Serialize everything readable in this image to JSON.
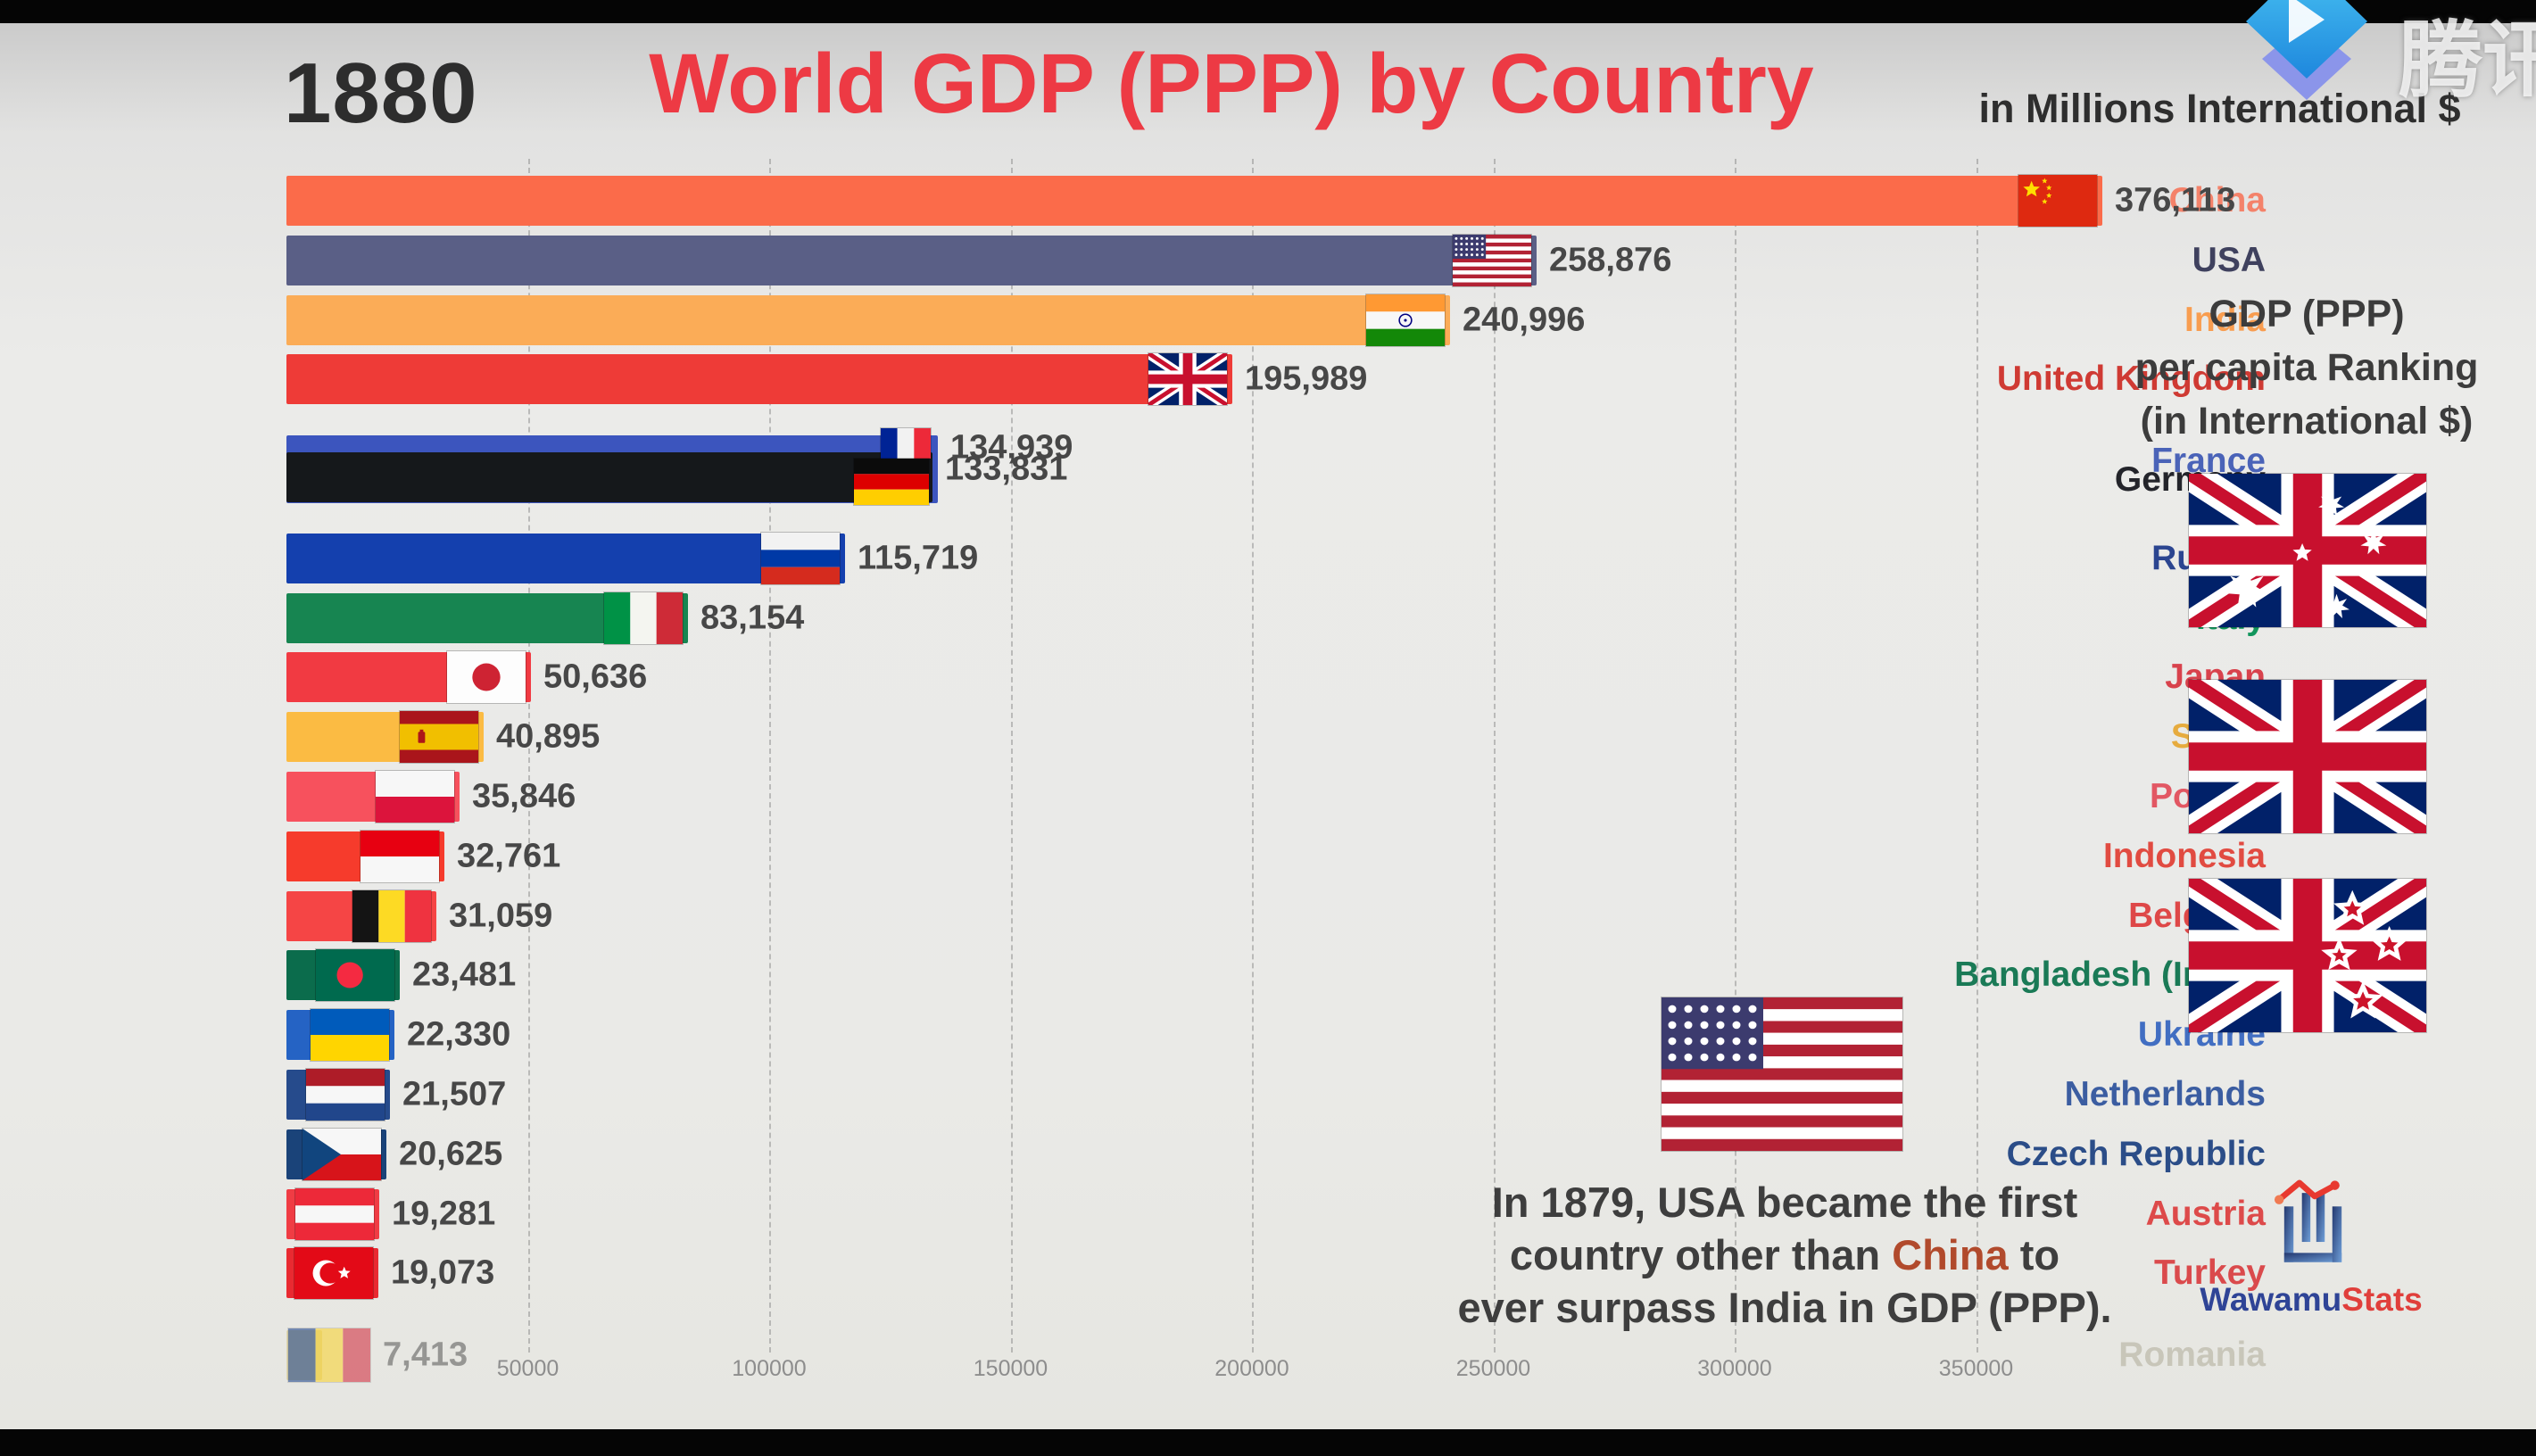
{
  "chart_data": {
    "type": "bar",
    "orientation": "horizontal",
    "title": "World GDP (PPP) by Country",
    "title_color": "#ed3a44",
    "year": "1880",
    "units_label": "in Millions International $",
    "xlim": [
      0,
      465000
    ],
    "x_ticks": [
      50000,
      100000,
      150000,
      200000,
      250000,
      300000,
      350000
    ],
    "x_tick_labels": [
      "50000",
      "100000",
      "150000",
      "200000",
      "250000",
      "300000",
      "350000"
    ],
    "grid": "dashed-vertical",
    "rows": [
      {
        "country": "China",
        "value": 376113,
        "value_label": "376,113",
        "flag": "china",
        "bar_color": "#fb6b4a",
        "label_color": "#f4826a",
        "faded": false
      },
      {
        "country": "USA",
        "value": 258876,
        "value_label": "258,876",
        "flag": "usa",
        "bar_color": "#5a5f86",
        "label_color": "#3f415e",
        "faded": false
      },
      {
        "country": "India",
        "value": 240996,
        "value_label": "240,996",
        "flag": "india",
        "bar_color": "#fbac57",
        "label_color": "#f89d50",
        "faded": false
      },
      {
        "country": "United Kingdom",
        "value": 195989,
        "value_label": "195,989",
        "flag": "uk",
        "bar_color": "#ee3b37",
        "label_color": "#cf3a33",
        "faded": false
      },
      {
        "country": "France",
        "value": 134939,
        "value_label": "134,939",
        "flag": "france",
        "bar_color": "#3c55be",
        "label_color": "#4a63b8",
        "faded": false
      },
      {
        "country": "Germany",
        "value": 133831,
        "value_label": "133,831",
        "flag": "germany",
        "bar_color": "#15181b",
        "label_color": "#23242a",
        "faded": false
      },
      {
        "country": "Russia",
        "value": 115719,
        "value_label": "115,719",
        "flag": "russia",
        "bar_color": "#1440ae",
        "label_color": "#2b4590",
        "faded": false
      },
      {
        "country": "Italy",
        "value": 83154,
        "value_label": "83,154",
        "flag": "italy",
        "bar_color": "#178551",
        "label_color": "#12965c",
        "faded": false
      },
      {
        "country": "Japan",
        "value": 50636,
        "value_label": "50,636",
        "flag": "japan",
        "bar_color": "#f13a42",
        "label_color": "#d8424c",
        "faded": false
      },
      {
        "country": "Spain",
        "value": 40895,
        "value_label": "40,895",
        "flag": "spain",
        "bar_color": "#fbbb43",
        "label_color": "#e6ab3e",
        "faded": false
      },
      {
        "country": "Poland",
        "value": 35846,
        "value_label": "35,846",
        "flag": "poland",
        "bar_color": "#f7515d",
        "label_color": "#e25763",
        "faded": false
      },
      {
        "country": "Indonesia",
        "value": 32761,
        "value_label": "32,761",
        "flag": "indonesia",
        "bar_color": "#f63b2c",
        "label_color": "#e14b41",
        "faded": false
      },
      {
        "country": "Belgium",
        "value": 31059,
        "value_label": "31,059",
        "flag": "belgium",
        "bar_color": "#f54545",
        "label_color": "#de4848",
        "faded": false
      },
      {
        "country": "Bangladesh (India)",
        "value": 23481,
        "value_label": "23,481",
        "flag": "bangladesh",
        "bar_color": "#0b6c4c",
        "label_color": "#1a7a56",
        "faded": false
      },
      {
        "country": "Ukraine",
        "value": 22330,
        "value_label": "22,330",
        "flag": "ukraine",
        "bar_color": "#2563c4",
        "label_color": "#416ec2",
        "faded": false
      },
      {
        "country": "Netherlands",
        "value": 21507,
        "value_label": "21,507",
        "flag": "netherlands",
        "bar_color": "#264b8c",
        "label_color": "#3b5da1",
        "faded": false
      },
      {
        "country": "Czech Republic",
        "value": 20625,
        "value_label": "20,625",
        "flag": "czech-republic",
        "bar_color": "#1a4379",
        "label_color": "#2b4d88",
        "faded": false
      },
      {
        "country": "Austria",
        "value": 19281,
        "value_label": "19,281",
        "flag": "austria",
        "bar_color": "#f03c44",
        "label_color": "#dd4a4a",
        "faded": false
      },
      {
        "country": "Turkey",
        "value": 19073,
        "value_label": "19,073",
        "flag": "turkey",
        "bar_color": "#e92a31",
        "label_color": "#da4a4c",
        "faded": false
      },
      {
        "country": "Romania",
        "value": 7413,
        "value_label": "7,413",
        "flag": "romania",
        "bar_color": "#d8c77e",
        "label_color": "#aaa692",
        "faded": true
      }
    ]
  },
  "side_panel": {
    "line1": "GDP (PPP)",
    "line2": "per capita Ranking",
    "line3": "(in International $)",
    "ranking_flags": [
      {
        "country": "Australia",
        "flag": "australia"
      },
      {
        "country": "United Kingdom",
        "flag": "uk"
      },
      {
        "country": "New Zealand",
        "flag": "new-zealand"
      }
    ]
  },
  "annotation": {
    "flag": "usa",
    "lines": [
      {
        "text": "In 1879, USA became the first"
      },
      {
        "prefix": "country other than ",
        "highlight": "China",
        "suffix": " to"
      },
      {
        "text": "ever surpass India in GDP (PPP)."
      }
    ],
    "highlight_color": "#b14a2c"
  },
  "branding": {
    "name_primary": "Wawamu",
    "name_secondary": "Stats",
    "primary_color": "#2f4496",
    "secondary_color": "#e03f3b"
  },
  "watermark": {
    "text": "腾讯"
  }
}
